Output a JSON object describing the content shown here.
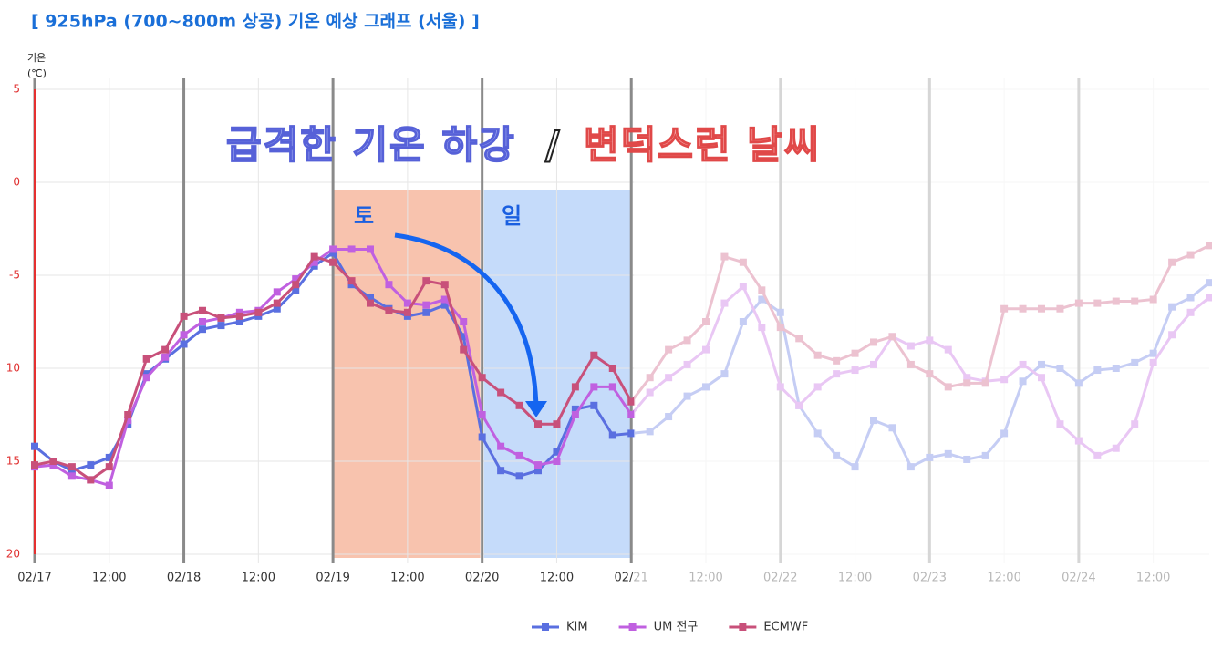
{
  "chart_data": {
    "type": "line",
    "title": "[ 925hPa (700~800m 상공) 기온 예상 그래프 (서울) ]",
    "y_label": "기온",
    "y_unit": "(℃)",
    "annotations": {
      "headline_left": "급격한 기온 하강",
      "separator": "/",
      "headline_right": "변덕스런 날씨",
      "saturday": "토",
      "sunday": "일"
    },
    "ylim": [
      -20,
      5
    ],
    "yticks": [
      5,
      0,
      -5,
      {
        "value": -10,
        "label": "10"
      },
      {
        "value": -15,
        "label": "15"
      },
      {
        "value": -20,
        "label": "20"
      }
    ],
    "xlim": [
      0,
      189
    ],
    "xticks": [
      {
        "value": 0,
        "label": "02/17"
      },
      {
        "value": 12,
        "label": "12:00"
      },
      {
        "value": 24,
        "label": "02/18"
      },
      {
        "value": 36,
        "label": "12:00"
      },
      {
        "value": 48,
        "label": "02/19"
      },
      {
        "value": 60,
        "label": "12:00"
      },
      {
        "value": 72,
        "label": "02/20"
      },
      {
        "value": 84,
        "label": "12:00"
      },
      {
        "value": 96,
        "label": "02/21"
      },
      {
        "value": 108,
        "label": "12:00"
      },
      {
        "value": 120,
        "label": "02/22"
      },
      {
        "value": 132,
        "label": "12:00"
      },
      {
        "value": 144,
        "label": "02/23"
      },
      {
        "value": 156,
        "label": "12:00"
      },
      {
        "value": 168,
        "label": "02/24"
      },
      {
        "value": 180,
        "label": "12:00"
      }
    ],
    "grid": true,
    "x": [
      0,
      3,
      6,
      9,
      12,
      15,
      18,
      21,
      24,
      27,
      30,
      33,
      36,
      39,
      42,
      45,
      48,
      51,
      54,
      57,
      60,
      63,
      66,
      69,
      72,
      75,
      78,
      81,
      84,
      87,
      90,
      93,
      96,
      99,
      102,
      105,
      108,
      111,
      114,
      117,
      120,
      123,
      126,
      129,
      132,
      135,
      138,
      141,
      144,
      147,
      150,
      153,
      156,
      159,
      162,
      165,
      168,
      171,
      174,
      177,
      180,
      183,
      186,
      189
    ],
    "series": [
      {
        "name": "KIM",
        "color": "#5a6fe0",
        "values": [
          -14.2,
          -15.0,
          -15.5,
          -15.2,
          -14.8,
          -13.0,
          -10.3,
          -9.5,
          -8.7,
          -7.9,
          -7.7,
          -7.5,
          -7.2,
          -6.8,
          -5.8,
          -4.5,
          -3.8,
          -5.5,
          -6.2,
          -6.8,
          -7.2,
          -7.0,
          -6.6,
          -8.3,
          -13.7,
          -15.5,
          -15.8,
          -15.5,
          -14.5,
          -12.2,
          -12.0,
          -13.6,
          -13.5,
          -13.4,
          -12.6,
          -11.5,
          -11.0,
          -10.3,
          -7.5,
          -6.3,
          -7.0,
          -12.0,
          -13.5,
          -14.7,
          -15.3,
          -12.8,
          -13.2,
          -15.3,
          -14.8,
          -14.6,
          -14.9,
          -14.7,
          -13.5,
          -10.7,
          -9.8,
          -10.0,
          -10.8,
          -10.1,
          -10.0,
          -9.7,
          -9.2,
          -6.7,
          -6.2,
          -5.4
        ]
      },
      {
        "name": "UM 전구",
        "color": "#c060e0",
        "values": [
          -15.3,
          -15.2,
          -15.8,
          -16.0,
          -16.3,
          -12.8,
          -10.5,
          -9.4,
          -8.2,
          -7.5,
          -7.3,
          -7.0,
          -6.9,
          -5.9,
          -5.2,
          -4.3,
          -3.6,
          -3.6,
          -3.6,
          -5.5,
          -6.5,
          -6.6,
          -6.3,
          -7.5,
          -12.5,
          -14.2,
          -14.7,
          -15.2,
          -15.0,
          -12.5,
          -11.0,
          -11.0,
          -12.5,
          -11.3,
          -10.5,
          -9.8,
          -9.0,
          -6.5,
          -5.6,
          -7.8,
          -11.0,
          -12.0,
          -11.0,
          -10.3,
          -10.1,
          -9.8,
          -8.3,
          -8.8,
          -8.5,
          -9.0,
          -10.5,
          -10.7,
          -10.6,
          -9.8,
          -10.5,
          -13.0,
          -13.9,
          -14.7,
          -14.3,
          -13.0,
          -9.7,
          -8.2,
          -7.0,
          -6.2
        ]
      },
      {
        "name": "ECMWF",
        "color": "#c8507a",
        "values": [
          -15.2,
          -15.0,
          -15.3,
          -16.0,
          -15.3,
          -12.5,
          -9.5,
          -9.0,
          -7.2,
          -6.9,
          -7.3,
          -7.2,
          -7.0,
          -6.5,
          -5.5,
          -4.0,
          -4.3,
          -5.3,
          -6.5,
          -6.9,
          -7.0,
          -5.3,
          -5.5,
          -9.0,
          -10.5,
          -11.3,
          -12.0,
          -13.0,
          -13.0,
          -11.0,
          -9.3,
          -10.0,
          -11.8,
          -10.5,
          -9.0,
          -8.5,
          -7.5,
          -4.0,
          -4.3,
          -5.8,
          -7.8,
          -8.4,
          -9.3,
          -9.6,
          -9.2,
          -8.6,
          -8.3,
          -9.8,
          -10.3,
          -11.0,
          -10.8,
          -10.8,
          -6.8,
          -6.8,
          -6.8,
          -6.8,
          -6.5,
          -6.5,
          -6.4,
          -6.4,
          -6.3,
          -4.3,
          -3.9,
          -3.4
        ]
      }
    ]
  }
}
